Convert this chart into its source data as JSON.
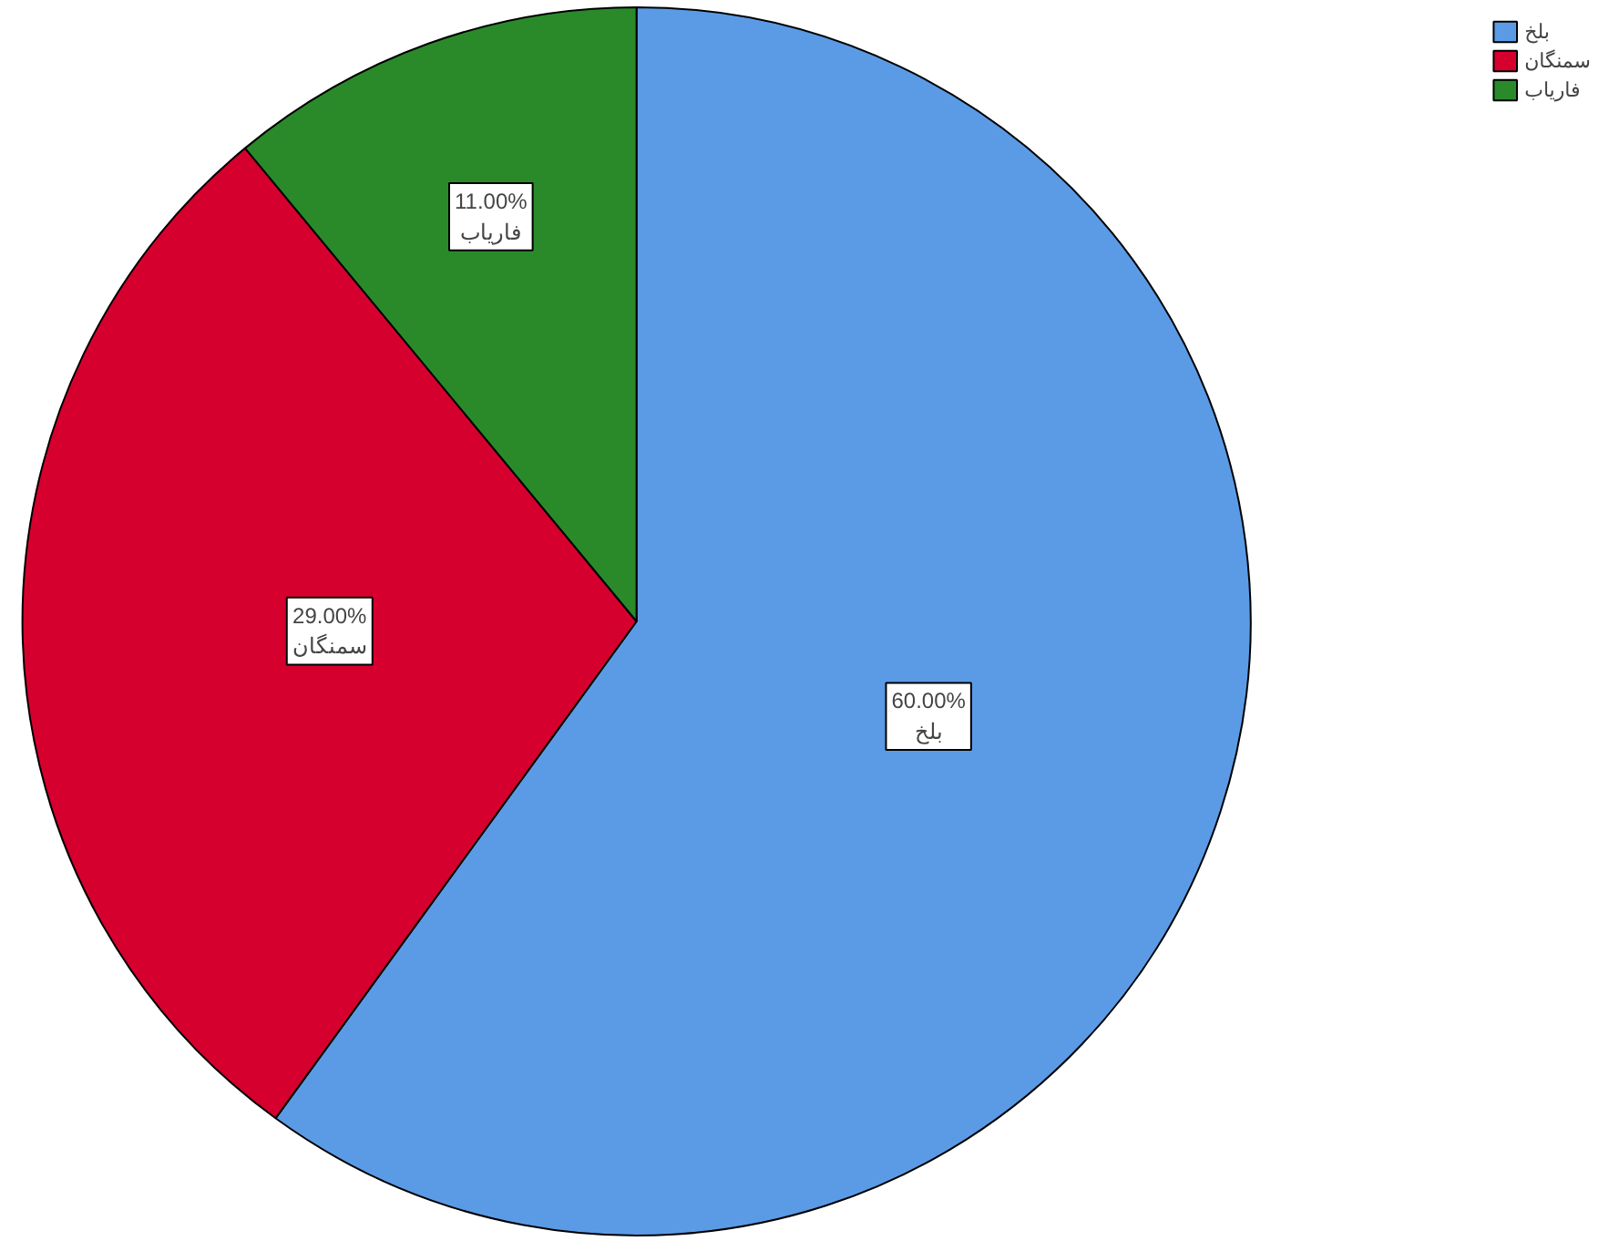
{
  "chart_data": {
    "type": "pie",
    "categories": [
      "بلخ",
      "سمنگان",
      "فاریاب"
    ],
    "values": [
      60,
      29,
      11
    ],
    "colors": [
      "#5b9be6",
      "#d6002e",
      "#2a8a2a"
    ],
    "value_labels": [
      "60.00%",
      "29.00%",
      "11.00%"
    ],
    "legend": "top right"
  }
}
